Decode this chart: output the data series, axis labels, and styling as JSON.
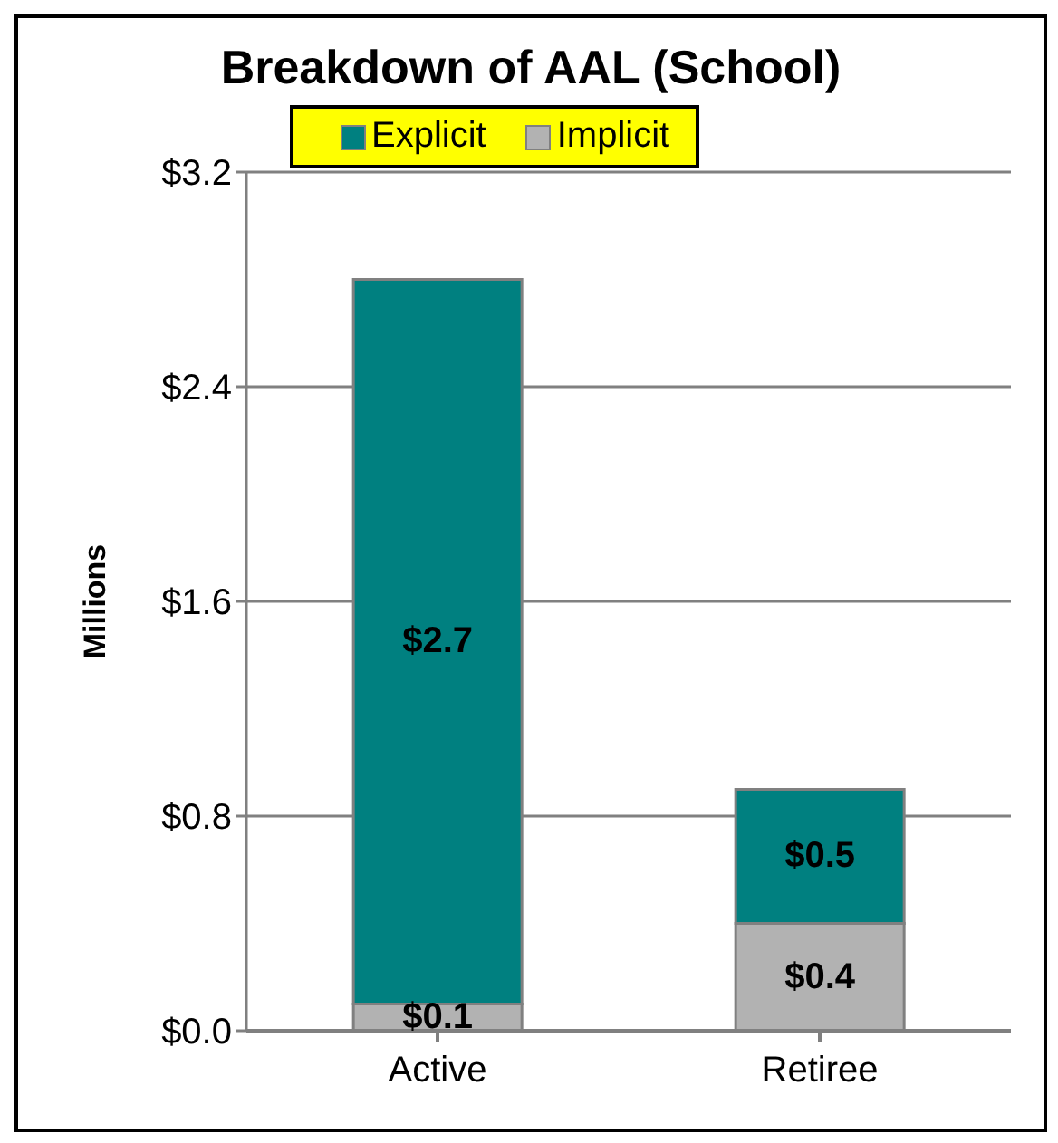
{
  "chart_data": {
    "type": "bar",
    "title": "Breakdown of AAL (School)",
    "ylabel": "Millions",
    "categories": [
      "Active",
      "Retiree"
    ],
    "stacked": true,
    "series": [
      {
        "name": "Implicit",
        "color": "#b2b2b2",
        "values": [
          0.1,
          0.4
        ],
        "value_labels": [
          "$0.1",
          "$0.4"
        ]
      },
      {
        "name": "Explicit",
        "color": "#008080",
        "values": [
          2.7,
          0.5
        ],
        "value_labels": [
          "$2.7",
          "$0.5"
        ]
      }
    ],
    "ylim": [
      0,
      3.2
    ],
    "yticks": [
      {
        "value": 0,
        "label": "$0.0"
      },
      {
        "value": 0.8,
        "label": "$0.8"
      },
      {
        "value": 1.6,
        "label": "$1.6"
      },
      {
        "value": 2.4,
        "label": "$2.4"
      },
      {
        "value": 3.2,
        "label": "$3.2"
      }
    ],
    "grid": "y",
    "legend": "top"
  }
}
